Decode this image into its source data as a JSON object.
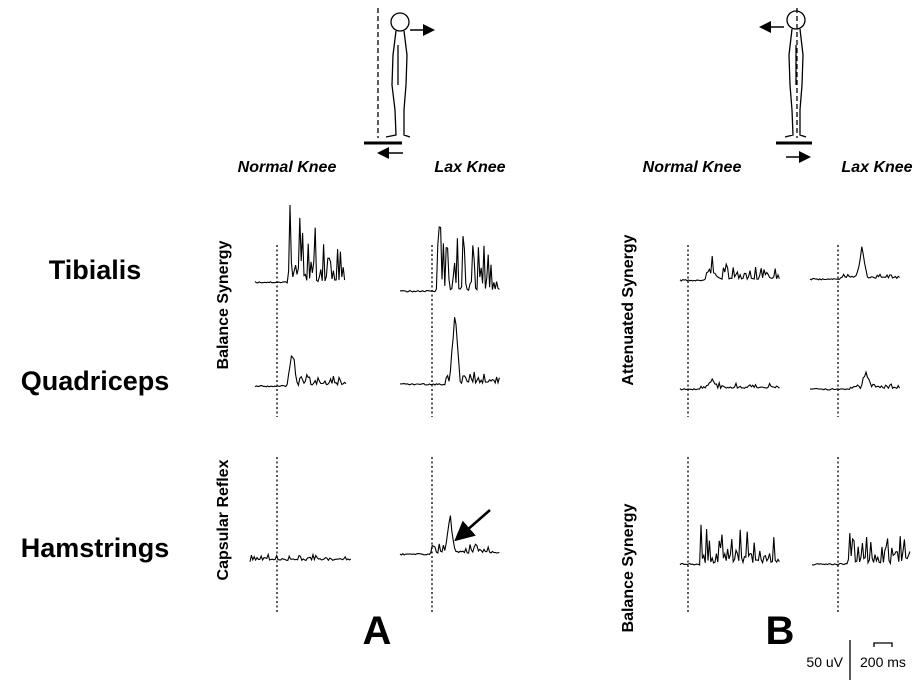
{
  "row_labels": [
    "Tibialis",
    "Quadriceps",
    "Hamstrings"
  ],
  "panels": [
    {
      "label": "A",
      "columns": [
        "Normal Knee",
        "Lax Knee"
      ],
      "side_labels": [
        "Balance Synergy",
        "Capsular Reflex"
      ]
    },
    {
      "label": "B",
      "columns": [
        "Normal Knee",
        "Lax Knee"
      ],
      "side_labels": [
        "Attenuated Synergy",
        "Balance Synergy"
      ]
    }
  ],
  "scale_bar": {
    "amplitude": "50 uV",
    "time": "200 ms"
  }
}
